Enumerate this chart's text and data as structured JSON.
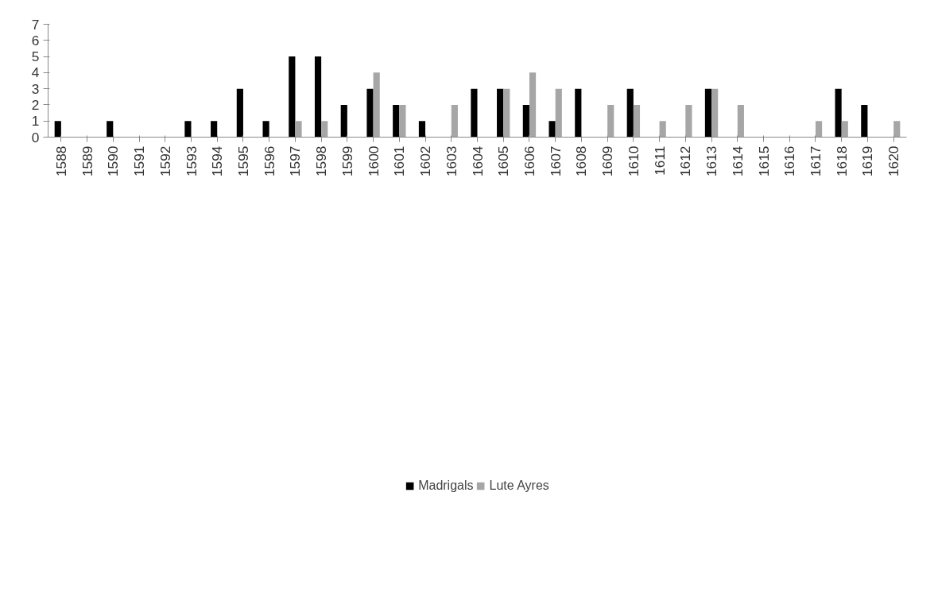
{
  "chart_data": {
    "type": "bar",
    "categories": [
      "1588",
      "1589",
      "1590",
      "1591",
      "1592",
      "1593",
      "1594",
      "1595",
      "1596",
      "1597",
      "1598",
      "1599",
      "1600",
      "1601",
      "1602",
      "1603",
      "1604",
      "1605",
      "1606",
      "1607",
      "1608",
      "1609",
      "1610",
      "1611",
      "1612",
      "1613",
      "1614",
      "1615",
      "1616",
      "1617",
      "1618",
      "1619",
      "1620"
    ],
    "series": [
      {
        "name": "Madrigals",
        "color": "#000000",
        "values": [
          1,
          0,
          1,
          0,
          0,
          1,
          1,
          3,
          1,
          5,
          5,
          2,
          3,
          2,
          1,
          0,
          3,
          3,
          2,
          1,
          3,
          0,
          3,
          0,
          0,
          3,
          0,
          0,
          0,
          0,
          3,
          2,
          0
        ]
      },
      {
        "name": "Lute Ayres",
        "color": "#a6a6a6",
        "values": [
          0,
          0,
          0,
          0,
          0,
          0,
          0,
          0,
          0,
          1,
          1,
          0,
          4,
          2,
          0,
          2,
          0,
          3,
          4,
          3,
          0,
          2,
          2,
          1,
          2,
          3,
          2,
          0,
          0,
          1,
          1,
          0,
          1
        ]
      }
    ],
    "ylim": [
      0,
      7
    ],
    "yticks": [
      0,
      1,
      2,
      3,
      4,
      5,
      6,
      7
    ],
    "grid": false,
    "legend": "bottom"
  }
}
